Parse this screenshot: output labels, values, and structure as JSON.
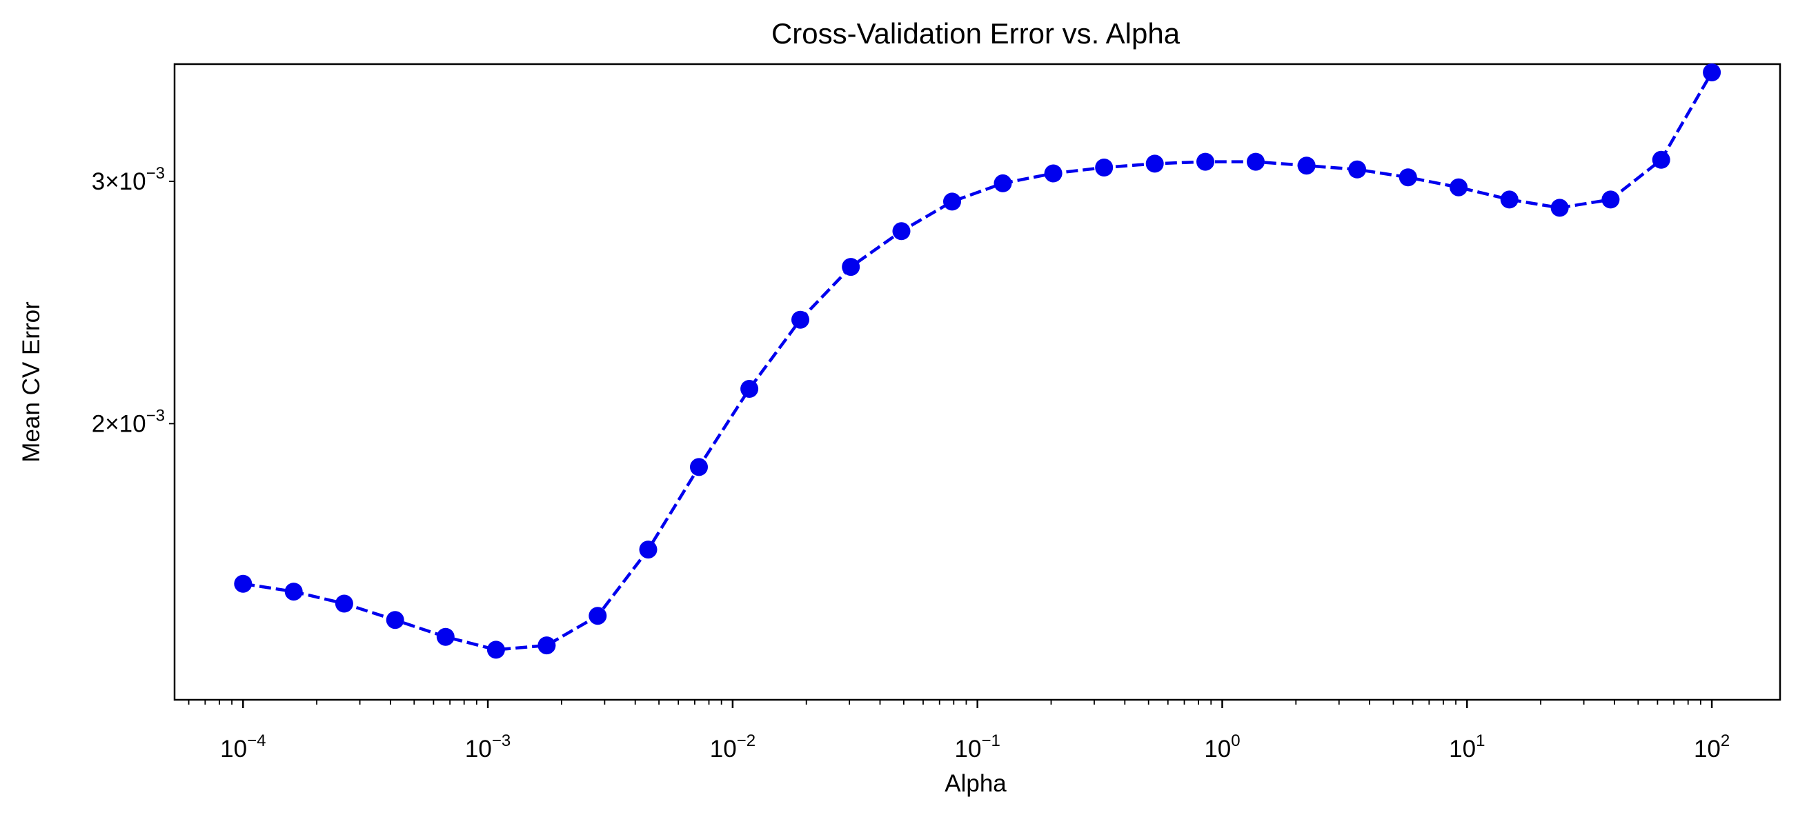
{
  "chart_data": {
    "type": "line",
    "title": "Cross-Validation Error vs. Alpha",
    "xlabel": "Alpha",
    "ylabel": "Mean CV Error",
    "xscale": "log",
    "yscale": "log",
    "xlim": [
      5.25e-05,
      190
    ],
    "ylim": [
      0.00126,
      0.00365
    ],
    "grid": false,
    "line_style": "dashed",
    "marker": "circle",
    "color": "#0000ee",
    "x_major_ticks": [
      {
        "value": 0.0001,
        "base": "10",
        "exp": "−4"
      },
      {
        "value": 0.001,
        "base": "10",
        "exp": "−3"
      },
      {
        "value": 0.01,
        "base": "10",
        "exp": "−2"
      },
      {
        "value": 0.1,
        "base": "10",
        "exp": "−1"
      },
      {
        "value": 1,
        "base": "10",
        "exp": "0"
      },
      {
        "value": 10,
        "base": "10",
        "exp": "1"
      },
      {
        "value": 100,
        "base": "10",
        "exp": "2"
      }
    ],
    "y_ticks": [
      {
        "value": 0.002,
        "mant": "2×10",
        "exp": "−3"
      },
      {
        "value": 0.003,
        "mant": "3×10",
        "exp": "−3"
      }
    ],
    "series": [
      {
        "x": [
          0.0001,
          0.000161,
          0.000259,
          0.000418,
          0.000672,
          0.00108,
          0.00174,
          0.00281,
          0.00452,
          0.00728,
          0.0117,
          0.0189,
          0.0304,
          0.0489,
          0.0788,
          0.127,
          0.204,
          0.329,
          0.53,
          0.853,
          1.37,
          2.21,
          3.56,
          5.74,
          9.24,
          14.9,
          23.9,
          38.6,
          62.1,
          100
        ],
        "y": [
          0.00153,
          0.00151,
          0.00148,
          0.00144,
          0.0014,
          0.00137,
          0.00138,
          0.00145,
          0.00162,
          0.00186,
          0.00212,
          0.00238,
          0.0026,
          0.00276,
          0.0029,
          0.00299,
          0.00304,
          0.00307,
          0.00309,
          0.0031,
          0.0031,
          0.00308,
          0.00306,
          0.00302,
          0.00297,
          0.00291,
          0.00287,
          0.00291,
          0.00311,
          0.0036
        ]
      }
    ]
  }
}
